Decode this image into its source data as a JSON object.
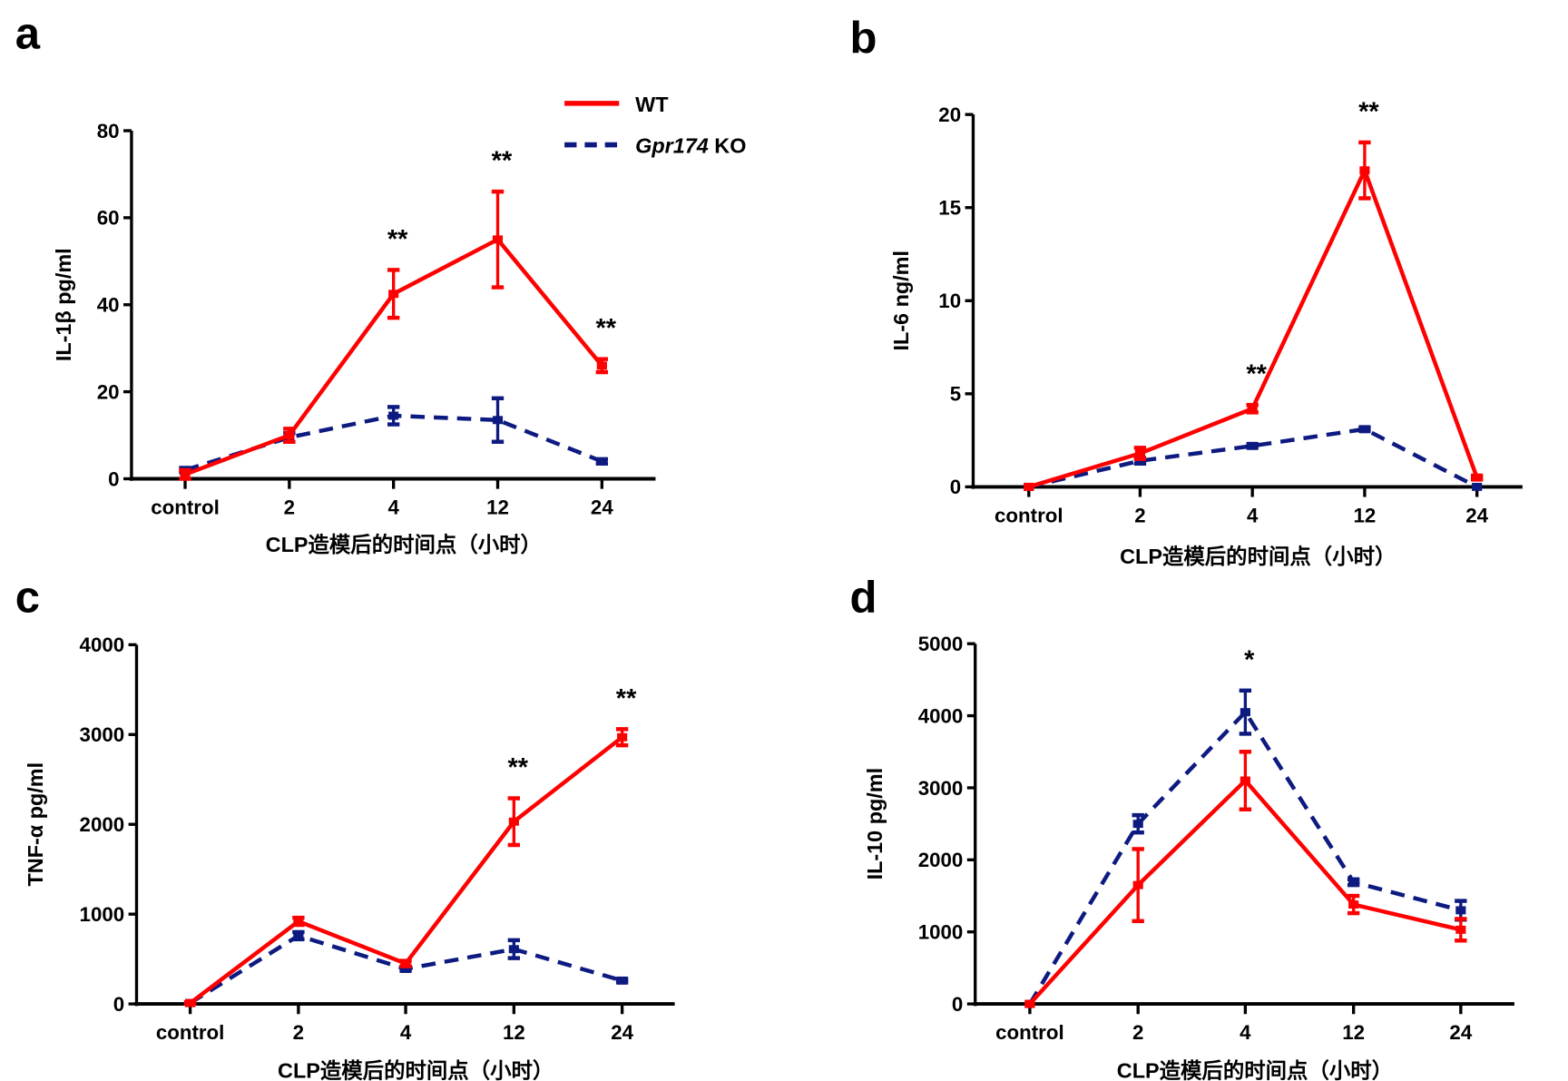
{
  "colors": {
    "WT": "#ff0000",
    "KO": "#0d1a80",
    "axis": "#000000"
  },
  "legend": [
    {
      "key": "WT",
      "label": "WT",
      "style": "solid"
    },
    {
      "key": "KO",
      "label_italic": "Gpr174",
      "label_rest": " KO",
      "style": "dashed"
    }
  ],
  "chart_data": [
    {
      "panel": "a",
      "type": "line",
      "categories": [
        "control",
        "2",
        "4",
        "12",
        "24"
      ],
      "xlabel": "CLP造模后的时间点（小时）",
      "ylabel": "IL-1β pg/ml",
      "ylim": [
        0,
        80
      ],
      "yticks": [
        "0",
        "20",
        "40",
        "60",
        "80"
      ],
      "series": [
        {
          "name": "WT",
          "values": [
            1,
            10,
            42.5,
            55,
            26
          ],
          "errors": [
            1,
            1.5,
            5.5,
            11,
            1.5
          ]
        },
        {
          "name": "Gpr174 KO",
          "values": [
            2,
            9.5,
            14.5,
            13.5,
            4
          ],
          "errors": [
            0.5,
            1,
            2,
            5,
            0.5
          ]
        }
      ],
      "significance": [
        "",
        "",
        "**",
        "**",
        "**"
      ]
    },
    {
      "panel": "b",
      "type": "line",
      "categories": [
        "control",
        "2",
        "4",
        "12",
        "24"
      ],
      "xlabel": "CLP造模后的时间点（小时）",
      "ylabel": "IL-6 ng/ml",
      "ylim": [
        0,
        20
      ],
      "yticks": [
        "0",
        "5",
        "10",
        "15",
        "20"
      ],
      "series": [
        {
          "name": "WT",
          "values": [
            0,
            1.8,
            4.2,
            17,
            0.5
          ],
          "errors": [
            0,
            0.3,
            0.2,
            1.5,
            0.1
          ]
        },
        {
          "name": "Gpr174 KO",
          "values": [
            0,
            1.4,
            2.2,
            3.1,
            0
          ],
          "errors": [
            0,
            0.15,
            0.1,
            0.1,
            0
          ]
        }
      ],
      "significance": [
        "",
        "",
        "**",
        "**",
        ""
      ]
    },
    {
      "panel": "c",
      "type": "line",
      "categories": [
        "control",
        "2",
        "4",
        "12",
        "24"
      ],
      "xlabel": "CLP造模后的时间点（小时）",
      "ylabel": "TNF-α pg/ml",
      "ylim": [
        0,
        4000
      ],
      "yticks": [
        "0",
        "1000",
        "2000",
        "3000",
        "4000"
      ],
      "series": [
        {
          "name": "WT",
          "values": [
            10,
            920,
            450,
            2030,
            2970
          ],
          "errors": [
            10,
            40,
            30,
            260,
            90
          ]
        },
        {
          "name": "Gpr174 KO",
          "values": [
            10,
            760,
            390,
            610,
            260
          ],
          "errors": [
            5,
            40,
            20,
            100,
            20
          ]
        }
      ],
      "significance": [
        "",
        "",
        "",
        "**",
        "**"
      ]
    },
    {
      "panel": "d",
      "type": "line",
      "categories": [
        "control",
        "2",
        "4",
        "12",
        "24"
      ],
      "xlabel": "CLP造模后的时间点（小时）",
      "ylabel": "IL-10 pg/ml",
      "ylim": [
        0,
        5000
      ],
      "yticks": [
        "0",
        "1000",
        "2000",
        "3000",
        "4000",
        "5000"
      ],
      "series": [
        {
          "name": "WT",
          "values": [
            0,
            1650,
            3100,
            1380,
            1030
          ],
          "errors": [
            0,
            500,
            400,
            120,
            150
          ]
        },
        {
          "name": "Gpr174 KO",
          "values": [
            0,
            2500,
            4050,
            1690,
            1300
          ],
          "errors": [
            0,
            120,
            300,
            40,
            130
          ]
        }
      ],
      "significance": [
        "",
        "",
        "*",
        "",
        ""
      ]
    }
  ]
}
